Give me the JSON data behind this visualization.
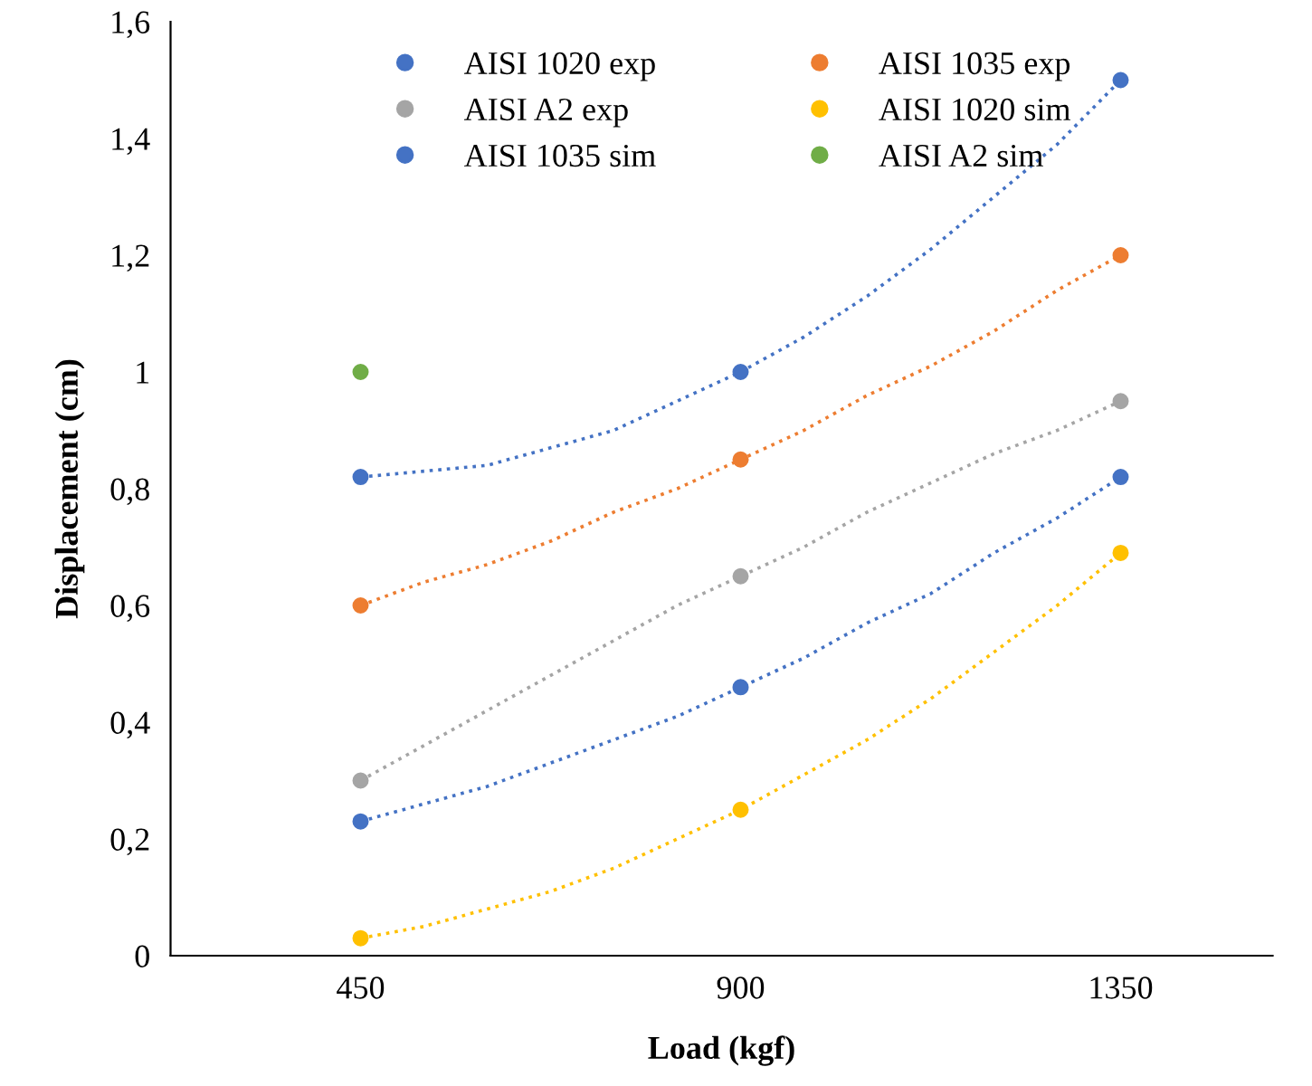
{
  "chart_data": {
    "type": "scatter",
    "xlabel": "Load (kgf)",
    "ylabel": "Displacement (cm)",
    "x": [
      450,
      900,
      1350
    ],
    "series": [
      {
        "name": "AISI 1020 exp",
        "color": "#4472c4",
        "marker": "circle",
        "values": [
          0.82,
          1.0,
          1.5
        ]
      },
      {
        "name": "AISI 1035 exp",
        "color": "#ed7d31",
        "marker": "circle",
        "values": [
          0.6,
          0.85,
          1.2
        ]
      },
      {
        "name": "AISI A2 exp",
        "color": "#a5a5a5",
        "marker": "circle",
        "values": [
          0.3,
          0.65,
          0.95
        ]
      },
      {
        "name": "AISI 1020 sim",
        "color": "#ffc000",
        "marker": "circle",
        "values": [
          0.03,
          0.25,
          0.69
        ]
      },
      {
        "name": "AISI 1035 sim",
        "color": "#4472c4",
        "marker": "circle",
        "values": [
          0.23,
          0.46,
          0.82
        ]
      },
      {
        "name": "AISI A2 sim",
        "color": "#70ad47",
        "marker": "circle",
        "x": [
          450
        ],
        "values": [
          1.0
        ]
      },
      {
        "type": "line",
        "color": "#4472c4",
        "x": [
          450,
          525,
          600,
          675,
          750,
          825,
          900,
          975,
          1050,
          1125,
          1200,
          1275,
          1350
        ],
        "values": [
          0.82,
          0.83,
          0.84,
          0.87,
          0.9,
          0.95,
          1.0,
          1.06,
          1.13,
          1.21,
          1.3,
          1.39,
          1.5
        ]
      },
      {
        "type": "line",
        "color": "#ed7d31",
        "x": [
          450,
          525,
          600,
          675,
          750,
          825,
          900,
          975,
          1050,
          1125,
          1200,
          1275,
          1350
        ],
        "values": [
          0.6,
          0.64,
          0.67,
          0.71,
          0.76,
          0.8,
          0.85,
          0.9,
          0.96,
          1.01,
          1.07,
          1.14,
          1.2
        ]
      },
      {
        "type": "line",
        "color": "#a5a5a5",
        "x": [
          450,
          525,
          600,
          675,
          750,
          825,
          900,
          975,
          1050,
          1125,
          1200,
          1275,
          1350
        ],
        "values": [
          0.3,
          0.36,
          0.42,
          0.48,
          0.54,
          0.6,
          0.65,
          0.7,
          0.76,
          0.81,
          0.86,
          0.9,
          0.95
        ]
      },
      {
        "type": "line",
        "color": "#ffc000",
        "x": [
          450,
          525,
          600,
          675,
          750,
          825,
          900,
          975,
          1050,
          1125,
          1200,
          1275,
          1350
        ],
        "values": [
          0.03,
          0.05,
          0.08,
          0.11,
          0.15,
          0.2,
          0.25,
          0.31,
          0.37,
          0.44,
          0.52,
          0.6,
          0.69
        ]
      },
      {
        "type": "line",
        "color": "#4472c4",
        "x": [
          450,
          525,
          600,
          675,
          750,
          825,
          900,
          975,
          1050,
          1125,
          1200,
          1275,
          1350
        ],
        "values": [
          0.23,
          0.26,
          0.29,
          0.33,
          0.37,
          0.41,
          0.46,
          0.51,
          0.57,
          0.62,
          0.69,
          0.75,
          0.82
        ]
      }
    ],
    "xlim": [
      225,
      1530
    ],
    "xticks": [
      450,
      900,
      1350
    ],
    "ylim": [
      0,
      1.6
    ],
    "yticks": [
      0,
      {
        "value": 0.2,
        "label": "0,2"
      },
      {
        "value": 0.4,
        "label": "0,4"
      },
      {
        "value": 0.6,
        "label": "0,6"
      },
      {
        "value": 0.8,
        "label": "0,8"
      },
      1,
      {
        "value": 1.2,
        "label": "1,2"
      },
      {
        "value": 1.4,
        "label": "1,4"
      },
      {
        "value": 1.6,
        "label": "1,6"
      }
    ],
    "legend": "top",
    "line_style": "dotted"
  }
}
